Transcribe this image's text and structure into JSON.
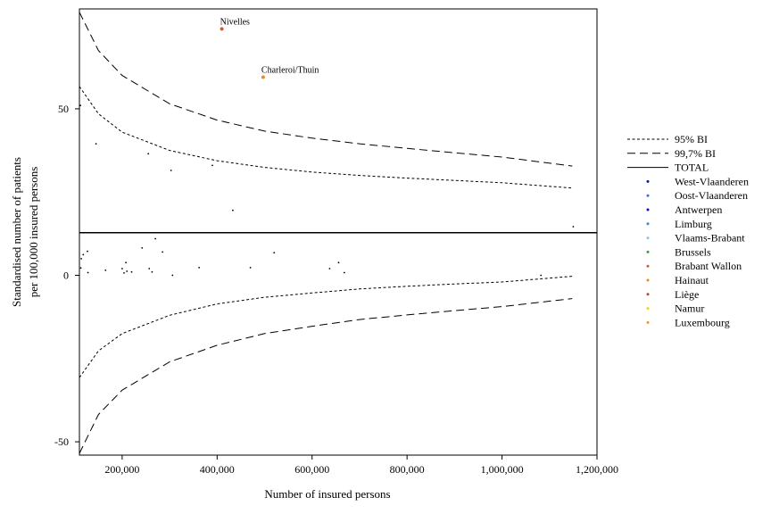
{
  "chart_data": {
    "type": "scatter",
    "xlabel": "Number of insured persons",
    "ylabel_line1": "Standardised number of patients",
    "ylabel_line2": "per 100,000 insured persons",
    "xlim": [
      110000,
      1200000
    ],
    "ylim": [
      -54,
      80
    ],
    "x_ticks": [
      200000,
      400000,
      600000,
      800000,
      1000000,
      1200000
    ],
    "x_tick_labels": [
      "200,000",
      "400,000",
      "600,000",
      "800,000",
      "1,000,000",
      "1,200,000"
    ],
    "y_ticks": [
      50,
      0,
      -50
    ],
    "y_tick_labels": [
      "50",
      "0",
      "-50"
    ],
    "grid": false,
    "legend_position": "right",
    "total": 12.8,
    "legend": [
      {
        "label": "95% BI",
        "kind": "line",
        "dash": "short"
      },
      {
        "label": "99,7% BI",
        "kind": "line",
        "dash": "long"
      },
      {
        "label": "TOTAL",
        "kind": "line",
        "dash": "solid"
      },
      {
        "label": "West-Vlaanderen",
        "kind": "dot",
        "color": "#0b1e8c"
      },
      {
        "label": "Oost-Vlaanderen",
        "kind": "dot",
        "color": "#3b6fd6"
      },
      {
        "label": "Antwerpen",
        "kind": "dot",
        "color": "#0a12d8"
      },
      {
        "label": "Limburg",
        "kind": "dot",
        "color": "#2d8fd8"
      },
      {
        "label": "Vlaams-Brabant",
        "kind": "dot",
        "color": "#7fc9ee"
      },
      {
        "label": "Brussels",
        "kind": "dot",
        "color": "#29a838"
      },
      {
        "label": "Brabant Wallon",
        "kind": "dot",
        "color": "#d9582a"
      },
      {
        "label": "Hainaut",
        "kind": "dot",
        "color": "#f08a1c"
      },
      {
        "label": "Liège",
        "kind": "dot",
        "color": "#b04a2a"
      },
      {
        "label": "Namur",
        "kind": "dot",
        "color": "#f2d21a"
      },
      {
        "label": "Luxembourg",
        "kind": "dot",
        "color": "#e89a2a"
      }
    ],
    "annotations": [
      {
        "label": "Nivelles",
        "x": 410000,
        "y": 74
      },
      {
        "label": "Charleroi/Thuin",
        "x": 497000,
        "y": 59.5
      }
    ],
    "highlight_points": [
      {
        "x": 410000,
        "y": 74,
        "color": "#d9582a"
      },
      {
        "x": 497000,
        "y": 59.5,
        "color": "#f08a1c"
      }
    ],
    "points": [
      [
        112000,
        51
      ],
      [
        145000,
        39.5
      ],
      [
        255000,
        36.5
      ],
      [
        303000,
        31.5
      ],
      [
        390000,
        33
      ],
      [
        433000,
        19.5
      ],
      [
        1150000,
        14.6
      ],
      [
        113000,
        2.2
      ],
      [
        114000,
        5
      ],
      [
        118000,
        6.2
      ],
      [
        127000,
        7.2
      ],
      [
        128000,
        0.8
      ],
      [
        165000,
        1.5
      ],
      [
        200000,
        2
      ],
      [
        204000,
        0.7
      ],
      [
        208000,
        3.8
      ],
      [
        210000,
        1.2
      ],
      [
        220000,
        1
      ],
      [
        242000,
        8.2
      ],
      [
        257000,
        2
      ],
      [
        263000,
        1
      ],
      [
        270000,
        11
      ],
      [
        285000,
        7
      ],
      [
        306000,
        0
      ],
      [
        362000,
        2.3
      ],
      [
        470000,
        2.3
      ],
      [
        520000,
        6.8
      ],
      [
        637000,
        2
      ],
      [
        656000,
        3.8
      ],
      [
        668000,
        0.8
      ],
      [
        1082000,
        0
      ]
    ],
    "series": [
      {
        "name": "95% BI",
        "upper": [
          [
            110000,
            56.7
          ],
          [
            150000,
            48.5
          ],
          [
            200000,
            43
          ],
          [
            300000,
            37.5
          ],
          [
            400000,
            34.4
          ],
          [
            500000,
            32.4
          ],
          [
            600000,
            31
          ],
          [
            700000,
            30
          ],
          [
            800000,
            29.2
          ],
          [
            900000,
            28.5
          ],
          [
            1000000,
            27.8
          ],
          [
            1148000,
            26.2
          ]
        ],
        "lower": [
          [
            110000,
            -30.7
          ],
          [
            150000,
            -22.7
          ],
          [
            200000,
            -17.5
          ],
          [
            300000,
            -12
          ],
          [
            400000,
            -8.6
          ],
          [
            500000,
            -6.6
          ],
          [
            600000,
            -5.3
          ],
          [
            700000,
            -4.1
          ],
          [
            800000,
            -3.3
          ],
          [
            900000,
            -2.6
          ],
          [
            1000000,
            -2
          ],
          [
            1148000,
            -0.3
          ]
        ]
      },
      {
        "name": "99,7% BI",
        "upper": [
          [
            110000,
            79
          ],
          [
            150000,
            67.5
          ],
          [
            200000,
            60
          ],
          [
            300000,
            51.5
          ],
          [
            400000,
            46.6
          ],
          [
            500000,
            43.3
          ],
          [
            600000,
            41.2
          ],
          [
            700000,
            39.5
          ],
          [
            800000,
            38.1
          ],
          [
            900000,
            36.8
          ],
          [
            1000000,
            35.5
          ],
          [
            1148000,
            32.8
          ]
        ],
        "lower": [
          [
            110000,
            -53.5
          ],
          [
            150000,
            -41.8
          ],
          [
            200000,
            -34.5
          ],
          [
            300000,
            -26
          ],
          [
            400000,
            -21
          ],
          [
            500000,
            -17.5
          ],
          [
            600000,
            -15.3
          ],
          [
            700000,
            -13.3
          ],
          [
            800000,
            -11.9
          ],
          [
            900000,
            -10.6
          ],
          [
            1000000,
            -9.4
          ],
          [
            1148000,
            -7
          ]
        ]
      }
    ]
  }
}
